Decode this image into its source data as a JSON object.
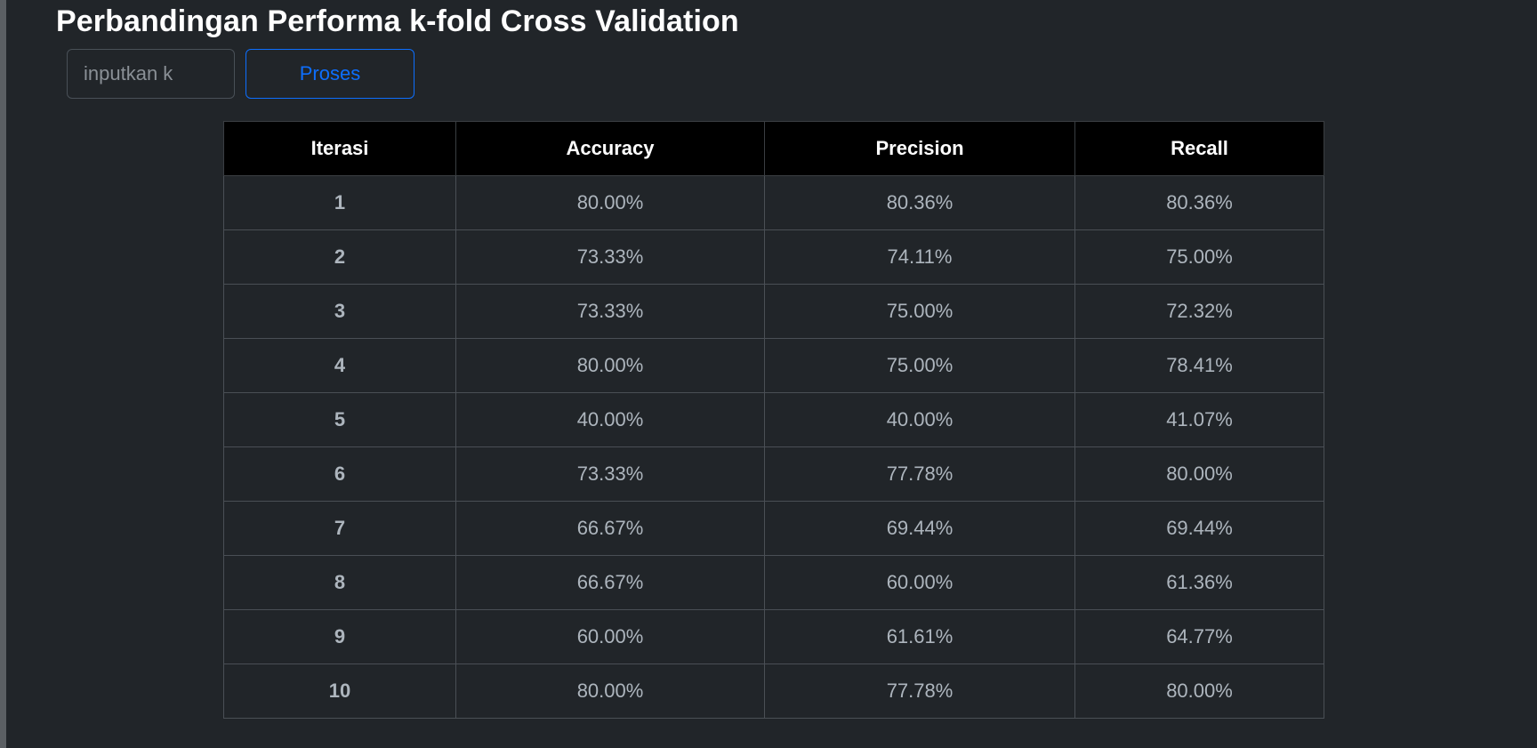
{
  "page": {
    "title": "Perbandingan Performa k-fold Cross Validation"
  },
  "form": {
    "k_input": {
      "value": "",
      "placeholder": "inputkan k"
    },
    "process_button_label": "Proses"
  },
  "colors": {
    "background": "#212529",
    "header_bg": "#000000",
    "primary": "#0d6efd"
  },
  "table": {
    "columns": [
      "Iterasi",
      "Accuracy",
      "Precision",
      "Recall"
    ],
    "rows": [
      {
        "iterasi": "1",
        "accuracy": "80.00%",
        "precision": "80.36%",
        "recall": "80.36%"
      },
      {
        "iterasi": "2",
        "accuracy": "73.33%",
        "precision": "74.11%",
        "recall": "75.00%"
      },
      {
        "iterasi": "3",
        "accuracy": "73.33%",
        "precision": "75.00%",
        "recall": "72.32%"
      },
      {
        "iterasi": "4",
        "accuracy": "80.00%",
        "precision": "75.00%",
        "recall": "78.41%"
      },
      {
        "iterasi": "5",
        "accuracy": "40.00%",
        "precision": "40.00%",
        "recall": "41.07%"
      },
      {
        "iterasi": "6",
        "accuracy": "73.33%",
        "precision": "77.78%",
        "recall": "80.00%"
      },
      {
        "iterasi": "7",
        "accuracy": "66.67%",
        "precision": "69.44%",
        "recall": "69.44%"
      },
      {
        "iterasi": "8",
        "accuracy": "66.67%",
        "precision": "60.00%",
        "recall": "61.36%"
      },
      {
        "iterasi": "9",
        "accuracy": "60.00%",
        "precision": "61.61%",
        "recall": "64.77%"
      },
      {
        "iterasi": "10",
        "accuracy": "80.00%",
        "precision": "77.78%",
        "recall": "80.00%"
      }
    ]
  }
}
